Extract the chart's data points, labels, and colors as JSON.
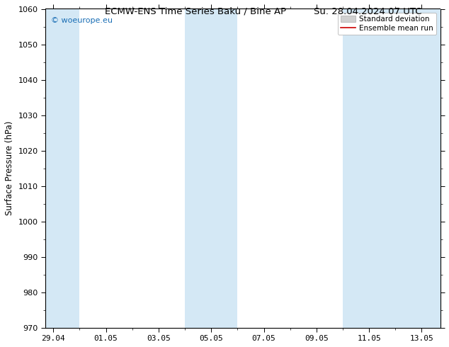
{
  "title_left": "ECMW-ENS Time Series Baku / Bine AP",
  "title_right": "Su. 28.04.2024 07 UTC",
  "ylabel": "Surface Pressure (hPa)",
  "ylim": [
    970,
    1060
  ],
  "yticks": [
    970,
    980,
    990,
    1000,
    1010,
    1020,
    1030,
    1040,
    1050,
    1060
  ],
  "xtick_labels": [
    "29.04",
    "01.05",
    "03.05",
    "05.05",
    "07.05",
    "09.05",
    "11.05",
    "13.05"
  ],
  "xtick_positions": [
    0,
    2,
    4,
    6,
    8,
    10,
    12,
    14
  ],
  "xlim": [
    -0.3,
    14.7
  ],
  "shaded_bands": [
    {
      "xmin": -0.3,
      "xmax": 1.0
    },
    {
      "xmin": 5.0,
      "xmax": 7.0
    },
    {
      "xmin": 11.0,
      "xmax": 14.7
    }
  ],
  "shaded_color": "#d4e8f5",
  "background_color": "#ffffff",
  "plot_bg_color": "#ffffff",
  "border_color": "#000000",
  "legend_std_label": "Standard deviation",
  "legend_mean_label": "Ensemble mean run",
  "legend_std_color": "#cccccc",
  "legend_mean_color": "#cc0000",
  "watermark_text": "© woeurope.eu",
  "watermark_color": "#1a6eb5",
  "title_fontsize": 9.5,
  "axis_fontsize": 8,
  "ylabel_fontsize": 8.5
}
